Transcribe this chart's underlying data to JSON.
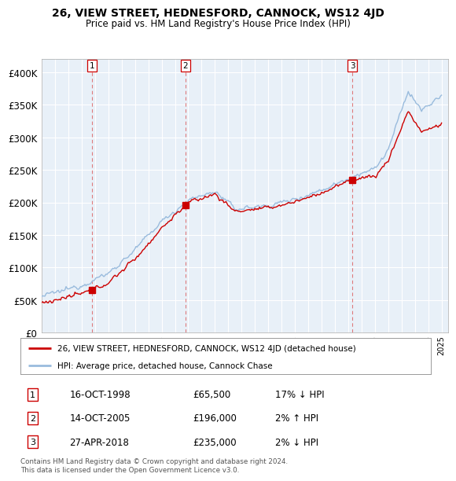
{
  "title": "26, VIEW STREET, HEDNESFORD, CANNOCK, WS12 4JD",
  "subtitle": "Price paid vs. HM Land Registry's House Price Index (HPI)",
  "ytick_values": [
    0,
    50000,
    100000,
    150000,
    200000,
    250000,
    300000,
    350000,
    400000
  ],
  "ylim": [
    0,
    420000
  ],
  "xlim_start": 1995.0,
  "xlim_end": 2025.5,
  "sales": [
    {
      "num": 1,
      "year": 1998.79,
      "price": 65500,
      "label": "16-OCT-1998",
      "amount": "£65,500",
      "pct": "17%",
      "dir": "↓"
    },
    {
      "num": 2,
      "year": 2005.79,
      "price": 196000,
      "label": "14-OCT-2005",
      "amount": "£196,000",
      "pct": "2%",
      "dir": "↑"
    },
    {
      "num": 3,
      "year": 2018.32,
      "price": 235000,
      "label": "27-APR-2018",
      "amount": "£235,000",
      "pct": "2%",
      "dir": "↓"
    }
  ],
  "line_color_property": "#cc0000",
  "line_color_hpi": "#99bbdd",
  "marker_color": "#cc0000",
  "vline_color": "#dd6666",
  "grid_color": "#cccccc",
  "chart_bg": "#e8f0f8",
  "background_color": "#ffffff",
  "legend_label_property": "26, VIEW STREET, HEDNESFORD, CANNOCK, WS12 4JD (detached house)",
  "legend_label_hpi": "HPI: Average price, detached house, Cannock Chase",
  "footnote1": "Contains HM Land Registry data © Crown copyright and database right 2024.",
  "footnote2": "This data is licensed under the Open Government Licence v3.0."
}
